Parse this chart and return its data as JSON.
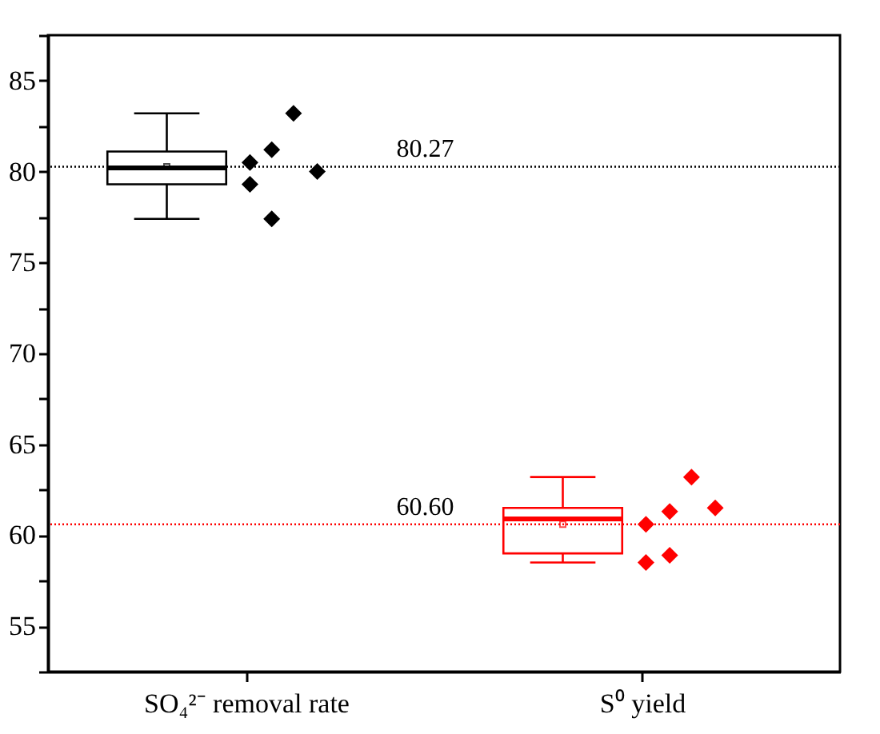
{
  "chart_data": {
    "type": "box",
    "categories": [
      "SO₄²⁻ removal rate",
      "S⁰ yield"
    ],
    "colors": [
      "#000000",
      "#ff0000"
    ],
    "boxes": [
      {
        "low": 77.4,
        "q1": 79.3,
        "median": 80.2,
        "q3": 81.1,
        "high": 83.2,
        "mean": 80.27
      },
      {
        "low": 58.5,
        "q1": 59.0,
        "median": 60.9,
        "q3": 61.5,
        "high": 63.2,
        "mean": 60.6
      }
    ],
    "series": [
      {
        "type": "scatter",
        "color": "#000000",
        "x": [
          "SO₄²⁻ removal rate",
          "SO₄²⁻ removal rate",
          "SO₄²⁻ removal rate",
          "SO₄²⁻ removal rate",
          "SO₄²⁻ removal rate",
          "SO₄²⁻ removal rate"
        ],
        "values": [
          83.2,
          81.2,
          80.5,
          79.3,
          80.0,
          77.4
        ]
      },
      {
        "type": "scatter",
        "color": "#ff0000",
        "x": [
          "S⁰ yield",
          "S⁰ yield",
          "S⁰ yield",
          "S⁰ yield",
          "S⁰ yield",
          "S⁰ yield"
        ],
        "values": [
          63.2,
          61.5,
          61.3,
          60.6,
          58.9,
          58.5
        ]
      }
    ],
    "marker": "diamond",
    "ylim": [
      52.5,
      87.5
    ],
    "yticks": [
      {
        "value": 52.5,
        "label": null
      },
      55,
      {
        "value": 57.5,
        "label": null
      },
      60,
      {
        "value": 62.5,
        "label": null
      },
      65,
      {
        "value": 67.5,
        "label": null
      },
      70,
      {
        "value": 72.5,
        "label": null
      },
      75,
      {
        "value": 77.5,
        "label": null
      },
      80,
      {
        "value": 82.5,
        "label": null
      },
      85,
      {
        "value": 87.5,
        "label": null
      }
    ],
    "ref_lines": [
      {
        "axis": "y",
        "value": 80.27,
        "label": "80.27",
        "color": "#000000",
        "line_style": "dotted"
      },
      {
        "axis": "y",
        "value": 60.6,
        "label": "60.60",
        "color": "#ff0000",
        "line_style": "dotted"
      }
    ],
    "grid": false,
    "legend": false
  }
}
